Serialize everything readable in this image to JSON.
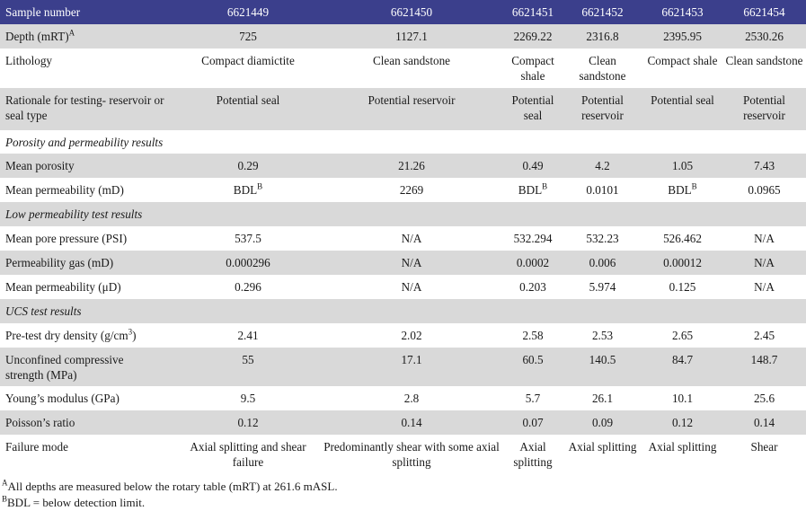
{
  "header": {
    "label": "Sample number",
    "samples": [
      "6621449",
      "6621450",
      "6621451",
      "6621452",
      "6621453",
      "6621454"
    ]
  },
  "rows": {
    "depth": {
      "label": "Depth (mRT)",
      "label_sup": "A",
      "values": [
        "725",
        "1127.1",
        "2269.22",
        "2316.8",
        "2395.95",
        "2530.26"
      ]
    },
    "lithology": {
      "label": "Lithology",
      "values": [
        "Compact diamictite",
        "Clean sandstone",
        "Compact shale",
        "Clean sandstone",
        "Compact shale",
        "Clean sandstone"
      ]
    },
    "rationale": {
      "label": "Rationale for testing- reservoir or seal type",
      "values": [
        "Potential seal",
        "Potential reservoir",
        "Potential seal",
        "Potential reservoir",
        "Potential seal",
        "Potential reservoir"
      ]
    },
    "section_porosity": {
      "label": "Porosity and permeability results"
    },
    "mean_porosity": {
      "label": "Mean porosity",
      "values": [
        "0.29",
        "21.26",
        "0.49",
        "4.2",
        "1.05",
        "7.43"
      ]
    },
    "mean_permeability_md": {
      "label": "Mean permeability (mD)",
      "values": [
        "BDL",
        "2269",
        "BDL",
        "0.0101",
        "BDL",
        "0.0965"
      ],
      "sup": [
        "B",
        "",
        "B",
        "",
        "B",
        ""
      ]
    },
    "section_lowperm": {
      "label": "Low permeability test results"
    },
    "mean_pore_pressure": {
      "label": "Mean pore pressure (PSI)",
      "values": [
        "537.5",
        "N/A",
        "532.294",
        "532.23",
        "526.462",
        "N/A"
      ]
    },
    "permeability_gas": {
      "label": "Permeability gas (mD)",
      "values": [
        "0.000296",
        "N/A",
        "0.0002",
        "0.006",
        "0.00012",
        "N/A"
      ]
    },
    "mean_permeability_ud": {
      "label": "Mean permeability (μD)",
      "values": [
        "0.296",
        "N/A",
        "0.203",
        "5.974",
        "0.125",
        "N/A"
      ]
    },
    "section_ucs": {
      "label": "UCS test results"
    },
    "dry_density": {
      "label": "Pre-test dry density (g/cm",
      "label_sup": "3",
      "label_tail": ")",
      "values": [
        "2.41",
        "2.02",
        "2.58",
        "2.53",
        "2.65",
        "2.45"
      ]
    },
    "ucs": {
      "label": "Unconfined compressive strength (MPa)",
      "values": [
        "55",
        "17.1",
        "60.5",
        "140.5",
        "84.7",
        "148.7"
      ]
    },
    "youngs": {
      "label": "Young’s modulus (GPa)",
      "values": [
        "9.5",
        "2.8",
        "5.7",
        "26.1",
        "10.1",
        "25.6"
      ]
    },
    "poisson": {
      "label": "Poisson’s ratio",
      "values": [
        "0.12",
        "0.14",
        "0.07",
        "0.09",
        "0.12",
        "0.14"
      ]
    },
    "failure_mode": {
      "label": "Failure mode",
      "values": [
        "Axial splitting and shear failure",
        "Predominantly shear with some axial splitting",
        "Axial splitting",
        "Axial splitting",
        "Axial splitting",
        "Shear"
      ]
    }
  },
  "footnotes": {
    "a_mark": "A",
    "a_text": "All depths are measured below the rotary table (mRT) at 261.6 mASL.",
    "b_mark": "B",
    "b_text": "BDL = below detection limit."
  },
  "colors": {
    "header_bg": "#3b3f8c",
    "shade_bg": "#d9d9d9"
  }
}
